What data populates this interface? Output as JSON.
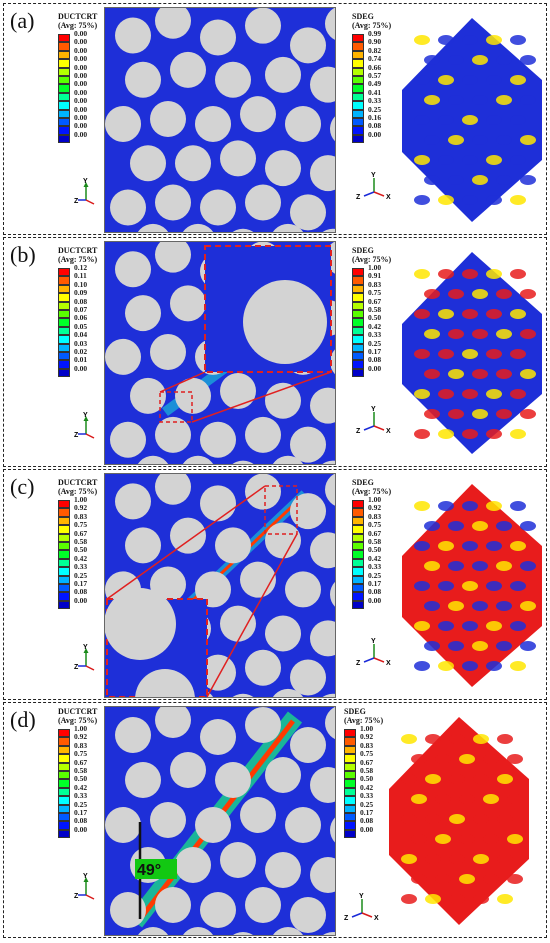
{
  "panels": [
    {
      "label": "(a)",
      "left_title": "DUCTCRT",
      "right_title": "SDEG",
      "avg": "(Avg: 75%)",
      "left_values": [
        "0.00",
        "0.00",
        "0.00",
        "0.00",
        "0.00",
        "0.00",
        "0.00",
        "0.00",
        "0.00",
        "0.00",
        "0.00",
        "0.00",
        "0.00"
      ],
      "right_values": [
        "0.99",
        "0.90",
        "0.82",
        "0.74",
        "0.66",
        "0.57",
        "0.49",
        "0.41",
        "0.33",
        "0.25",
        "0.16",
        "0.08",
        "0.00"
      ]
    },
    {
      "label": "(b)",
      "left_title": "DUCTCRT",
      "right_title": "SDEG",
      "avg": "(Avg: 75%)",
      "left_values": [
        "0.12",
        "0.11",
        "0.10",
        "0.09",
        "0.08",
        "0.07",
        "0.06",
        "0.05",
        "0.04",
        "0.03",
        "0.02",
        "0.01",
        "0.00"
      ],
      "right_values": [
        "1.00",
        "0.91",
        "0.83",
        "0.75",
        "0.67",
        "0.58",
        "0.50",
        "0.42",
        "0.33",
        "0.25",
        "0.17",
        "0.08",
        "0.00"
      ]
    },
    {
      "label": "(c)",
      "left_title": "DUCTCRT",
      "right_title": "SDEG",
      "avg": "(Avg: 75%)",
      "left_values": [
        "1.00",
        "0.92",
        "0.83",
        "0.75",
        "0.67",
        "0.58",
        "0.50",
        "0.42",
        "0.33",
        "0.25",
        "0.17",
        "0.08",
        "0.00"
      ],
      "right_values": [
        "1.00",
        "0.92",
        "0.83",
        "0.75",
        "0.67",
        "0.58",
        "0.50",
        "0.42",
        "0.33",
        "0.25",
        "0.17",
        "0.08",
        "0.00"
      ]
    },
    {
      "label": "(d)",
      "left_title": "DUCTCRT",
      "right_title": "SDEG",
      "avg": "(Avg: 75%)",
      "left_values": [
        "1.00",
        "0.92",
        "0.83",
        "0.75",
        "0.67",
        "0.58",
        "0.50",
        "0.42",
        "0.33",
        "0.25",
        "0.17",
        "0.08",
        "0.00"
      ],
      "right_values": [
        "1.00",
        "0.92",
        "0.83",
        "0.75",
        "0.67",
        "0.58",
        "0.50",
        "0.42",
        "0.33",
        "0.25",
        "0.17",
        "0.08",
        "0.00"
      ],
      "angle_label": "49°"
    }
  ],
  "axes": {
    "y": "Y",
    "z": "Z",
    "x": "X"
  },
  "colormap": [
    "#ff0000",
    "#ff5a00",
    "#ffb400",
    "#ffff00",
    "#b4ff00",
    "#5aff00",
    "#00ff28",
    "#00ff96",
    "#00ffff",
    "#00b4ff",
    "#005aff",
    "#0014ff",
    "#0000c8"
  ]
}
